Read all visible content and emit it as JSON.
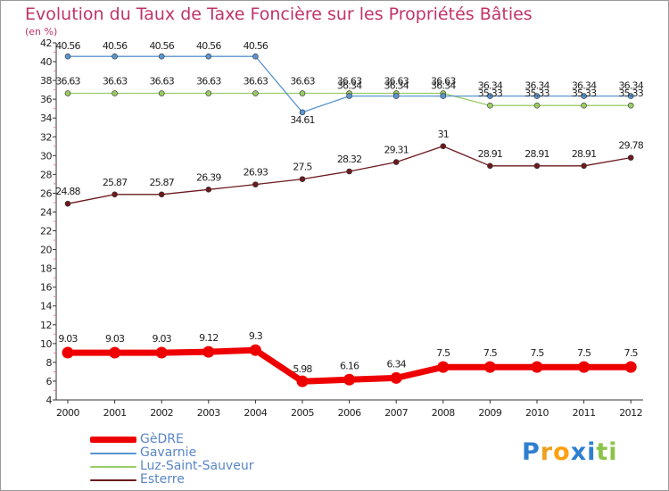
{
  "chart_data": {
    "type": "line",
    "title": "Evolution du Taux de Taxe Foncière sur les Propriétés Bâties",
    "unit_label": "(en %)",
    "categories": [
      "2000",
      "2001",
      "2002",
      "2003",
      "2004",
      "2005",
      "2006",
      "2007",
      "2008",
      "2009",
      "2010",
      "2011",
      "2012"
    ],
    "ylim": [
      4,
      42
    ],
    "yticks": [
      4,
      6,
      8,
      10,
      12,
      14,
      16,
      18,
      20,
      22,
      24,
      26,
      28,
      30,
      32,
      34,
      36,
      38,
      40,
      42
    ],
    "series": [
      {
        "name": "GèDRE",
        "color": "#ee0000",
        "values": [
          9.03,
          9.03,
          9.03,
          9.12,
          9.3,
          5.98,
          6.16,
          6.34,
          7.5,
          7.5,
          7.5,
          7.5,
          7.5
        ],
        "labels": [
          "9.03",
          "9.03",
          "9.03",
          "9.12",
          "9.3",
          "5.98",
          "6.16",
          "6.34",
          "7.5",
          "7.5",
          "7.5",
          "7.5",
          "7.5"
        ]
      },
      {
        "name": "Gavarnie",
        "color": "#5a95cf",
        "values": [
          40.56,
          40.56,
          40.56,
          40.56,
          40.56,
          34.61,
          36.34,
          36.34,
          36.34,
          36.34,
          36.34,
          36.34,
          36.34
        ],
        "labels": [
          "40.56",
          "40.56",
          "40.56",
          "40.56",
          "40.56",
          "34.61",
          "36.34",
          "36.34",
          "36.34",
          "36.34",
          "36.34",
          "36.34",
          "36.34"
        ]
      },
      {
        "name": "Luz-Saint-Sauveur",
        "color": "#99cc66",
        "values": [
          36.63,
          36.63,
          36.63,
          36.63,
          36.63,
          36.63,
          36.63,
          36.63,
          36.63,
          35.33,
          35.33,
          35.33,
          35.33
        ],
        "labels": [
          "36.63",
          "36.63",
          "36.63",
          "36.63",
          "36.63",
          "36.63",
          "36.63",
          "36.63",
          "36.63",
          "35.33",
          "35.33",
          "35.33",
          "35.33"
        ]
      },
      {
        "name": "Esterre",
        "color": "#6b1a1e",
        "values": [
          24.88,
          25.87,
          25.87,
          26.39,
          26.93,
          27.5,
          28.32,
          29.31,
          31,
          28.91,
          28.91,
          28.91,
          29.78
        ],
        "labels": [
          "24.88",
          "25.87",
          "25.87",
          "26.39",
          "26.93",
          "27.5",
          "28.32",
          "29.31",
          "31",
          "28.91",
          "28.91",
          "28.91",
          "29.78"
        ]
      }
    ],
    "legend_position": "bottom-left",
    "grid": false
  },
  "brand": {
    "name": "Proxiti",
    "letters": [
      "P",
      "r",
      "o",
      "x",
      "i",
      "t",
      "i"
    ],
    "colors": [
      "#2f7fd0",
      "#f0a020",
      "#ffa010",
      "#2f7fd0",
      "#2f7fd0",
      "#8bc34a",
      "#8bc34a"
    ]
  }
}
